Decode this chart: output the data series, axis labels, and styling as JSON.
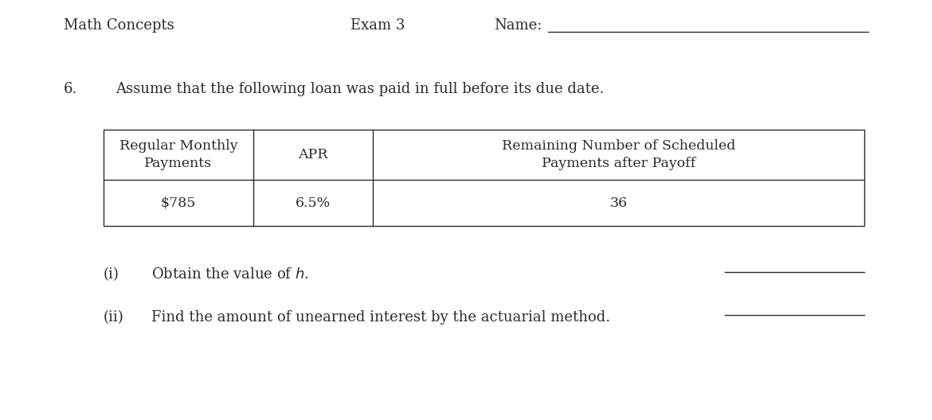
{
  "background_color": "#ffffff",
  "header_left": "Math Concepts",
  "header_center": "Exam 3",
  "header_name_label": "Name:",
  "problem_number": "6.",
  "problem_statement": "Assume that the following loan was paid in full before its due date.",
  "table": {
    "col1_header": "Regular Monthly\nPayments",
    "col2_header": "APR",
    "col3_header": "Remaining Number of Scheduled\nPayments after Payoff",
    "col1_value": "$785",
    "col2_value": "6.5%",
    "col3_value": "36"
  },
  "sub_i_label": "(i)",
  "sub_i_text": "Obtain the value of $h$.",
  "sub_ii_label": "(ii)",
  "sub_ii_text": "Find the amount of unearned interest by the actuarial method.",
  "font_family": "serif",
  "font_size_header": 13,
  "font_size_body": 13,
  "font_size_table": 12.5,
  "text_color": "#2b2b2b",
  "line_color": "#2b2b2b",
  "fig_width": 11.7,
  "fig_height": 5.28,
  "dpi": 100
}
